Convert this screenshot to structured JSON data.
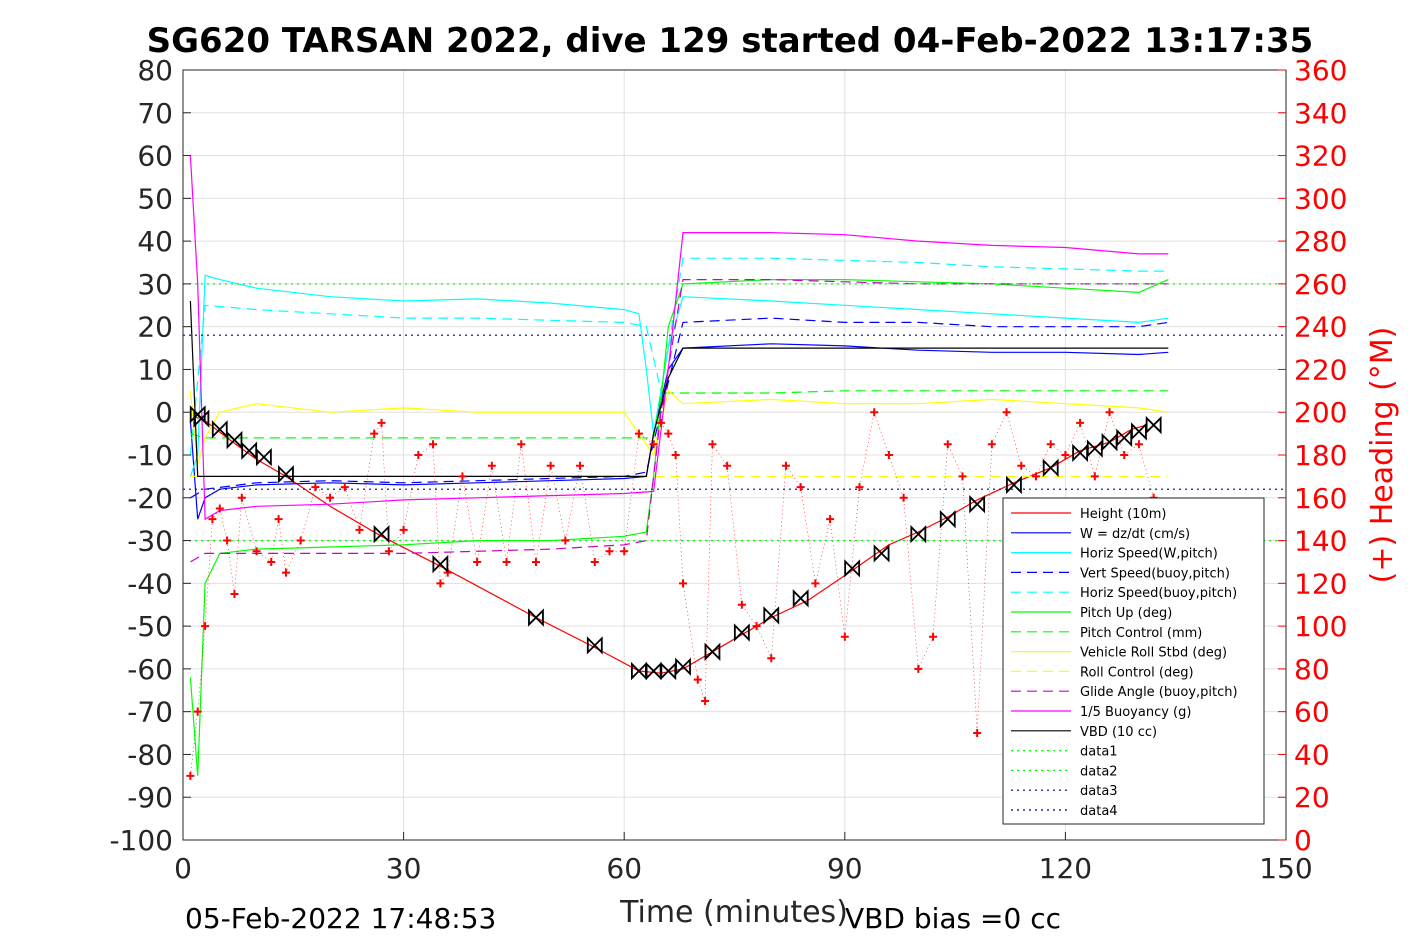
{
  "chart_data": {
    "type": "line",
    "title": "SG620 TARSAN 2022, dive 129 started 04-Feb-2022 13:17:35",
    "xlabel": "Time (minutes)",
    "ylabel_right": "(+) Heading (°M)",
    "xlim": [
      0,
      150
    ],
    "ylim_left": [
      -100,
      80
    ],
    "ylim_right": [
      0,
      360
    ],
    "x_ticks": [
      "0",
      "30",
      "60",
      "90",
      "120",
      "150"
    ],
    "y_ticks_left": [
      "80",
      "70",
      "60",
      "50",
      "40",
      "30",
      "20",
      "10",
      "0",
      "-10",
      "-20",
      "-30",
      "-40",
      "-50",
      "-60",
      "-70",
      "-80",
      "-90",
      "-100"
    ],
    "y_ticks_right": [
      "360",
      "340",
      "320",
      "300",
      "280",
      "260",
      "240",
      "220",
      "200",
      "180",
      "160",
      "140",
      "120",
      "100",
      "80",
      "60",
      "40",
      "20",
      "0"
    ],
    "grid": true,
    "legend_position": "bottom-right",
    "footer_left": "05-Feb-2022 17:48:53",
    "footer_right": "VBD bias =0 cc",
    "series": [
      {
        "name": "Height (10m)",
        "color": "#ff0000",
        "style": "solid",
        "x": [
          1.5,
          3,
          6,
          10,
          14,
          20,
          27,
          35,
          48,
          56,
          62,
          65,
          68,
          72,
          76,
          80,
          85,
          91,
          96,
          100,
          104,
          108,
          113,
          118,
          122,
          126,
          129,
          131
        ],
        "y": [
          -1,
          -2,
          -6,
          -11,
          -15,
          -22,
          -29,
          -36,
          -48,
          -55,
          -60.5,
          -61,
          -60,
          -56,
          -52,
          -48,
          -44,
          -37,
          -31,
          -28,
          -24.5,
          -20.5,
          -16.5,
          -13,
          -9,
          -7,
          -4,
          -3
        ]
      },
      {
        "name": "W = dz/dt (cm/s)",
        "color": "#0000ff",
        "style": "solid",
        "x": [
          1,
          2,
          3,
          5,
          10,
          20,
          30,
          40,
          50,
          60,
          63,
          64,
          66,
          68,
          80,
          90,
          100,
          110,
          120,
          130,
          134
        ],
        "y": [
          -2,
          -25,
          -20,
          -18,
          -17,
          -16.5,
          -17,
          -16.5,
          -16,
          -15.5,
          -15,
          -5,
          10,
          15,
          16,
          15.5,
          14.5,
          14,
          14,
          13.5,
          14
        ]
      },
      {
        "name": "Horiz Speed(W,pitch)",
        "color": "#00ffff",
        "style": "solid",
        "x": [
          1,
          2,
          3,
          5,
          10,
          20,
          30,
          40,
          50,
          60,
          62,
          63,
          64,
          66,
          68,
          80,
          90,
          100,
          110,
          120,
          130,
          134
        ],
        "y": [
          -15,
          -10,
          32,
          31,
          29,
          27,
          26,
          26.5,
          25.5,
          24,
          23,
          10,
          -5,
          15,
          27,
          26,
          25,
          24,
          23,
          22,
          21,
          22
        ]
      },
      {
        "name": "Vert Speed(buoy,pitch)",
        "color": "#0000ff",
        "style": "dashed",
        "x": [
          1,
          3,
          10,
          20,
          30,
          40,
          50,
          60,
          63,
          65,
          68,
          80,
          90,
          100,
          110,
          120,
          130,
          134
        ],
        "y": [
          -20,
          -18,
          -16.5,
          -16,
          -16.5,
          -16,
          -15.5,
          -15,
          -14,
          0,
          21,
          22,
          21,
          21,
          20,
          20,
          20,
          21
        ]
      },
      {
        "name": "Horiz Speed(buoy,pitch)",
        "color": "#00ffff",
        "style": "dashed",
        "x": [
          1,
          3,
          10,
          20,
          30,
          40,
          50,
          60,
          63,
          65,
          68,
          80,
          90,
          100,
          110,
          120,
          130,
          134
        ],
        "y": [
          -10,
          25,
          24,
          23,
          22,
          22,
          21.5,
          21,
          20,
          5,
          36,
          36,
          35.5,
          35,
          34,
          33.5,
          33,
          33
        ]
      },
      {
        "name": "Pitch Up (deg)",
        "color": "#00ff00",
        "style": "solid",
        "x": [
          1,
          2,
          3,
          5,
          10,
          20,
          30,
          40,
          50,
          60,
          63,
          64,
          66,
          68,
          80,
          90,
          100,
          110,
          120,
          130,
          134
        ],
        "y": [
          -62,
          -85,
          -40,
          -33,
          -32,
          -31.5,
          -31,
          -30,
          -30,
          -29,
          -28,
          -15,
          20,
          30,
          31,
          31,
          30.5,
          30,
          29,
          28,
          31
        ]
      },
      {
        "name": "Pitch Control (mm)",
        "color": "#00ff00",
        "style": "dashed",
        "x": [
          1,
          3,
          10,
          20,
          30,
          40,
          50,
          60,
          64,
          65,
          80,
          90,
          100,
          110,
          120,
          130,
          134
        ],
        "y": [
          -5,
          -6,
          -6,
          -6,
          -6,
          -6,
          -6,
          -6,
          -6,
          4.5,
          4.5,
          5,
          5,
          5,
          5,
          5,
          5
        ]
      },
      {
        "name": "Vehicle Roll Stbd (deg)",
        "color": "#ffff00",
        "style": "solid",
        "x": [
          1,
          2,
          3,
          5,
          10,
          20,
          30,
          40,
          50,
          60,
          64,
          66,
          68,
          80,
          90,
          100,
          110,
          120,
          130,
          134
        ],
        "y": [
          5,
          -12,
          -6,
          0,
          2,
          0,
          1,
          0,
          0,
          0,
          -10,
          5,
          2,
          3,
          2,
          2,
          3,
          2,
          1,
          0
        ]
      },
      {
        "name": "Roll Control (deg)",
        "color": "#ffff00",
        "style": "dashed",
        "x": [
          1,
          3,
          10,
          20,
          30,
          40,
          50,
          60,
          64,
          66,
          80,
          90,
          100,
          110,
          120,
          130,
          134
        ],
        "y": [
          -15,
          -15,
          -15,
          -15,
          -15,
          -15,
          -15,
          -15,
          -15,
          -15,
          -15,
          -15,
          -15,
          -15,
          -15,
          -15,
          -15
        ]
      },
      {
        "name": "Glide Angle (buoy,pitch)",
        "color": "#cc00cc",
        "style": "dashed",
        "x": [
          1,
          3,
          10,
          20,
          30,
          40,
          50,
          60,
          63,
          65,
          68,
          80,
          90,
          100,
          110,
          120,
          130,
          134
        ],
        "y": [
          -35,
          -33,
          -33,
          -33,
          -33,
          -32.5,
          -32,
          -31,
          -30,
          0,
          31,
          31,
          30.5,
          30,
          30,
          30,
          30,
          30
        ]
      },
      {
        "name": "1/5 Buoyancy (g)",
        "color": "#ff00ff",
        "style": "solid",
        "x": [
          1,
          2,
          3,
          5,
          10,
          20,
          30,
          40,
          50,
          60,
          64,
          66,
          68,
          80,
          90,
          100,
          110,
          120,
          130,
          134
        ],
        "y": [
          60,
          30,
          -25,
          -23,
          -22,
          -21.5,
          -20.5,
          -20,
          -19.5,
          -19,
          -18.5,
          10,
          42,
          42,
          41.5,
          40,
          39,
          38.5,
          37,
          37
        ]
      },
      {
        "name": "VBD (10 cc)",
        "color": "#000000",
        "style": "solid",
        "x": [
          1,
          2,
          3,
          5,
          10,
          20,
          30,
          40,
          50,
          60,
          63,
          64,
          66,
          68,
          80,
          90,
          100,
          110,
          120,
          130,
          134
        ],
        "y": [
          26,
          -15,
          -15,
          -15,
          -15,
          -15,
          -15,
          -15,
          -15,
          -15,
          -15,
          -5,
          8,
          15,
          15,
          15,
          15,
          15,
          15,
          15,
          15
        ]
      },
      {
        "name": "data1",
        "color": "#00ff00",
        "style": "dotted",
        "x": [
          0,
          150
        ],
        "y": [
          30,
          30
        ]
      },
      {
        "name": "data2",
        "color": "#00ff00",
        "style": "dotted",
        "x": [
          0,
          150
        ],
        "y": [
          -30,
          -30
        ]
      },
      {
        "name": "data3",
        "color": "#000080",
        "style": "dotted",
        "x": [
          0,
          150
        ],
        "y": [
          18,
          18
        ]
      },
      {
        "name": "data4",
        "color": "#000080",
        "style": "dotted",
        "x": [
          0,
          150
        ],
        "y": [
          -18,
          -18
        ]
      }
    ],
    "heading": {
      "axis": "right",
      "color": "#ff0000",
      "marker": "+",
      "x": [
        1,
        2,
        3,
        4,
        5,
        6,
        7,
        8,
        10,
        12,
        13,
        14,
        16,
        18,
        20,
        22,
        24,
        26,
        27,
        28,
        30,
        32,
        34,
        35,
        36,
        38,
        40,
        42,
        44,
        46,
        48,
        50,
        52,
        54,
        56,
        58,
        60,
        62,
        64,
        65,
        66,
        67,
        68,
        70,
        71,
        72,
        74,
        76,
        78,
        80,
        82,
        84,
        86,
        88,
        90,
        92,
        94,
        96,
        98,
        100,
        102,
        104,
        106,
        108,
        110,
        112,
        114,
        116,
        118,
        120,
        122,
        124,
        126,
        128,
        130,
        132
      ],
      "y": [
        30,
        60,
        100,
        150,
        155,
        140,
        115,
        160,
        135,
        130,
        150,
        125,
        140,
        165,
        160,
        165,
        145,
        190,
        195,
        135,
        145,
        180,
        185,
        120,
        125,
        170,
        130,
        175,
        130,
        185,
        130,
        175,
        140,
        175,
        130,
        135,
        135,
        190,
        185,
        195,
        190,
        180,
        120,
        75,
        65,
        185,
        175,
        110,
        100,
        85,
        175,
        165,
        120,
        150,
        95,
        165,
        200,
        180,
        160,
        80,
        95,
        185,
        170,
        50,
        185,
        200,
        175,
        170,
        185,
        180,
        195,
        170,
        200,
        180,
        185,
        160
      ]
    },
    "height_markers": {
      "x": [
        2,
        2.5,
        5,
        7,
        9,
        11,
        14,
        27,
        35,
        48,
        56,
        62,
        64,
        66,
        68,
        72,
        76,
        80,
        84,
        91,
        95,
        100,
        104,
        108,
        113,
        118,
        122,
        124,
        126,
        128,
        130,
        132
      ],
      "y": [
        -0.5,
        -1.5,
        -4,
        -6.5,
        -9,
        -10.5,
        -14.5,
        -28.5,
        -35.5,
        -48,
        -54.5,
        -60.5,
        -60.5,
        -60.5,
        -59.5,
        -56,
        -51.5,
        -47.5,
        -43.5,
        -36.5,
        -33,
        -28.5,
        -25,
        -21.5,
        -17,
        -13,
        -9.5,
        -8.5,
        -7,
        -6,
        -4.5,
        -3
      ]
    }
  }
}
